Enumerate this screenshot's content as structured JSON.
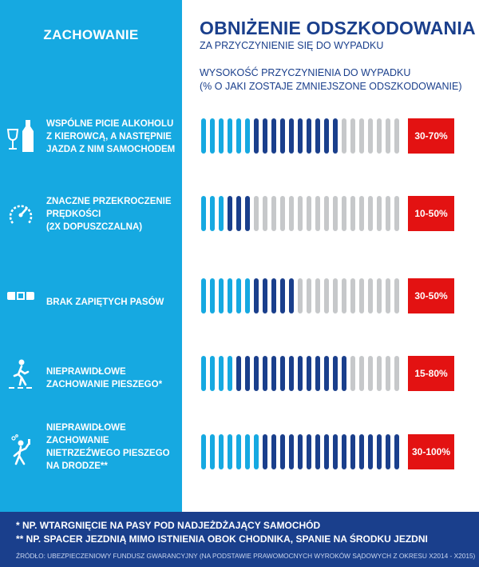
{
  "left_header": "ZACHOWANIE",
  "header": {
    "title": "OBNIŻENIE ODSZKODOWANIA",
    "subtitle": "ZA PRZYCZYNIENIE SIĘ DO WYPADKU"
  },
  "scale": {
    "line1": "WYSOKOŚĆ PRZYCZYNIENIA DO WYPADKU",
    "line2": "(% O JAKI ZOSTAJE ZMNIEJSZONE ODSZKODOWANIE)"
  },
  "colors": {
    "light": "#16a9e1",
    "dark": "#1a3f8c",
    "grey": "#c6c8ca",
    "badge": "#e31212"
  },
  "rows": [
    {
      "icon": "wine-bottle-icon",
      "label_lines": [
        "WSPÓLNE PICIE ALKOHOLU",
        "Z KIEROWCĄ, A NASTĘPNIE",
        "JAZDA Z NIM SAMOCHODEM"
      ],
      "light": 6,
      "dark": 10,
      "range": "30-70%"
    },
    {
      "icon": "speedometer-icon",
      "label_lines": [
        "ZNACZNE PRZEKROCZENIE",
        "PRĘDKOŚCI",
        "(2X DOPUSZCZALNA)"
      ],
      "light": 3,
      "dark": 3,
      "range": "10-50%"
    },
    {
      "icon": "seatbelt-icon",
      "label_lines": [
        "BRAK ZAPIĘTYCH PASÓW"
      ],
      "light": 6,
      "dark": 5,
      "range": "30-50%"
    },
    {
      "icon": "pedestrian-icon",
      "label_lines": [
        "NIEPRAWIDŁOWE",
        "ZACHOWANIE PIESZEGO*"
      ],
      "light": 4,
      "dark": 13,
      "range": "15-80%"
    },
    {
      "icon": "drunk-pedestrian-icon",
      "label_lines": [
        "NIEPRAWIDŁOWE",
        "ZACHOWANIE",
        "NIETRZEŹWEGO PIESZEGO",
        "NA DRODZE**"
      ],
      "light": 7,
      "dark": 16,
      "range": "30-100%"
    }
  ],
  "footer": {
    "note1": "* NP. WTARGNIĘCIE NA PASY POD NADJEŻDŻAJĄCY SAMOCHÓD",
    "note2": "** NP. SPACER JEZDNIĄ MIMO ISTNIENIA OBOK CHODNIKA, SPANIE NA ŚRODKU JEZDNI",
    "source": "ŹRÓDŁO: UBEZPIECZENIOWY FUNDUSZ GWARANCYJNY (NA PODSTAWIE PRAWOMOCNYCH WYROKÓW SĄDOWYCH Z OKRESU X2014 - X2015)"
  }
}
